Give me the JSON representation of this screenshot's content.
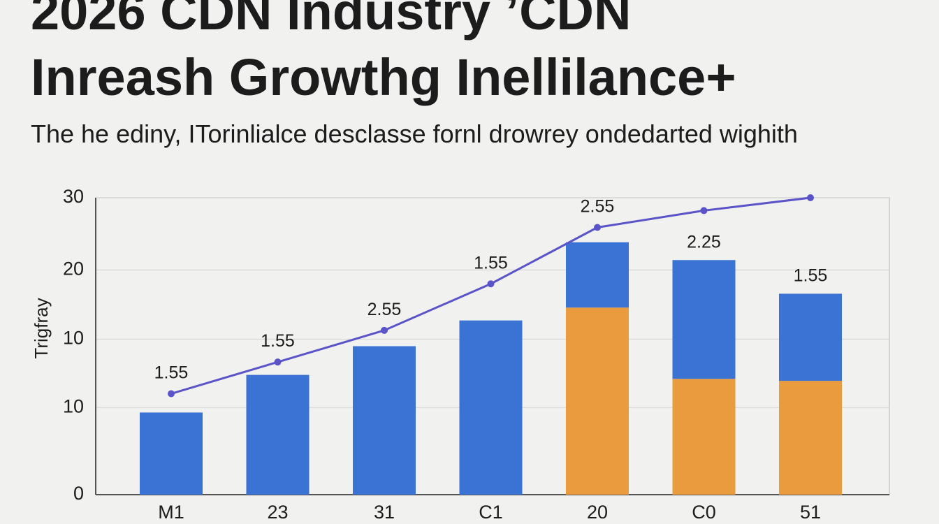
{
  "chart_data": {
    "type": "bar",
    "title_lines": [
      "2026 CDN Industry ’CDN",
      "Inreash Growthg Inellilance+"
    ],
    "subtitle": "The he ediny, ITorinlialce desclasse fornl drowrey ondedarted wighith",
    "y_label": "Trigfray",
    "categories": [
      "M1",
      "23",
      "31",
      "C1",
      "20",
      "C0",
      "51"
    ],
    "series": [
      {
        "type": "bar",
        "color": "#e99b3e",
        "values": [
          null,
          null,
          null,
          null,
          18.9,
          11.7,
          11.5
        ]
      },
      {
        "type": "bar",
        "color": "#3a73d3",
        "values": [
          8.3,
          12.1,
          15.0,
          17.6,
          6.6,
          12.0,
          8.8
        ]
      },
      {
        "type": "line",
        "color": "#5a54c8",
        "values": [
          10.2,
          13.4,
          16.6,
          21.3,
          27.0,
          28.7,
          30.0
        ]
      }
    ],
    "labels": [
      "1.55",
      "1.55",
      "2.55",
      "1.55",
      "2.55",
      "2.25",
      "1.55"
    ],
    "ylim": [
      0,
      30
    ],
    "yticks": [
      0,
      {
        "value": 8.8,
        "label": "10"
      },
      {
        "value": 15.7,
        "label": "10"
      },
      {
        "value": 22.7,
        "label": "20"
      },
      30
    ],
    "grid": true
  }
}
